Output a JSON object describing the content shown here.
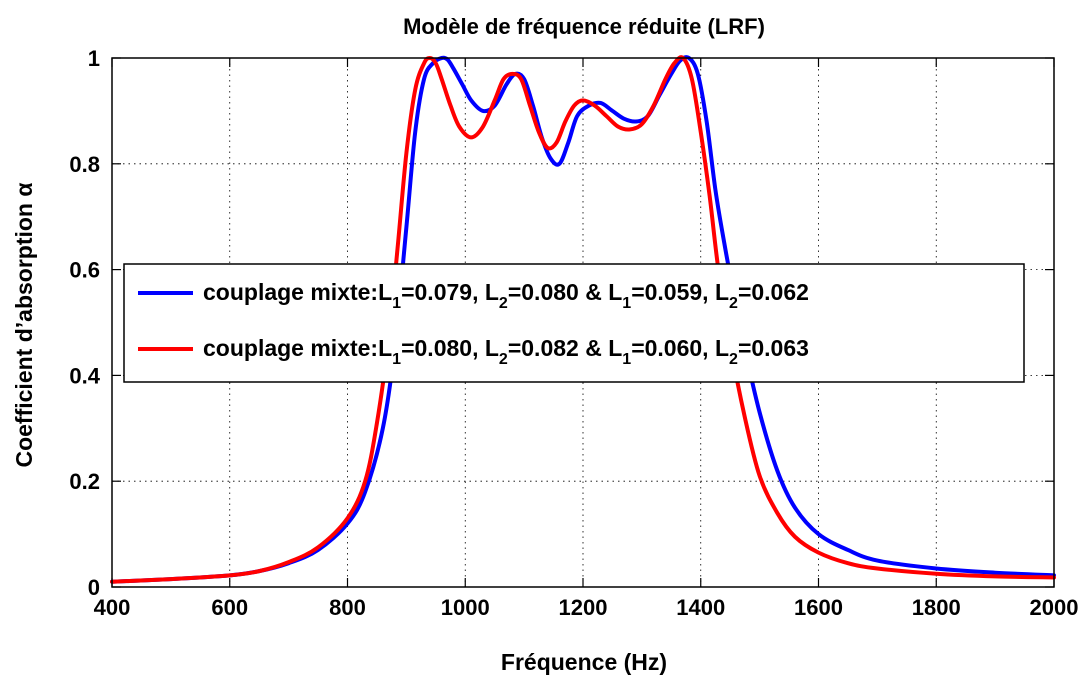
{
  "chart_data": {
    "type": "line",
    "title": "Modèle de fréquence réduite (LRF)",
    "xlabel": "Fréquence (Hz)",
    "ylabel": "Coefficient d’absorption α",
    "xlim": [
      400,
      2000
    ],
    "ylim": [
      0,
      1
    ],
    "xticks": [
      400,
      600,
      800,
      1000,
      1200,
      1400,
      1600,
      1800,
      2000
    ],
    "yticks": [
      0,
      0.2,
      0.4,
      0.6,
      0.8,
      1
    ],
    "ytick_labels": [
      "0",
      "0.2",
      "0.4",
      "0.6",
      "0.8",
      "1"
    ],
    "grid": true,
    "legend": "center",
    "series": [
      {
        "color": "#0000ff",
        "legend": {
          "prefix": "couplage mixte:",
          "parts": [
            {
              "base": "L",
              "sub": "1",
              "val": "=0.079, "
            },
            {
              "base": "L",
              "sub": "2",
              "val": "=0.080 & "
            },
            {
              "base": "L",
              "sub": "1",
              "val": "=0.059, "
            },
            {
              "base": "L",
              "sub": "2",
              "val": "=0.062"
            }
          ]
        },
        "x": [
          400,
          500,
          600,
          650,
          700,
          750,
          800,
          830,
          860,
          880,
          900,
          915,
          930,
          945,
          960,
          970,
          980,
          995,
          1010,
          1030,
          1050,
          1070,
          1085,
          1100,
          1115,
          1130,
          1145,
          1160,
          1175,
          1190,
          1210,
          1230,
          1250,
          1270,
          1290,
          1310,
          1330,
          1350,
          1365,
          1380,
          1395,
          1410,
          1425,
          1440,
          1455,
          1475,
          1500,
          1530,
          1560,
          1600,
          1650,
          1700,
          1800,
          1900,
          2000
        ],
        "y": [
          0.01,
          0.015,
          0.022,
          0.03,
          0.045,
          0.07,
          0.12,
          0.18,
          0.3,
          0.45,
          0.68,
          0.86,
          0.96,
          0.99,
          1.0,
          0.997,
          0.98,
          0.95,
          0.92,
          0.9,
          0.91,
          0.95,
          0.97,
          0.96,
          0.91,
          0.85,
          0.81,
          0.8,
          0.84,
          0.89,
          0.91,
          0.915,
          0.9,
          0.885,
          0.88,
          0.89,
          0.93,
          0.97,
          0.995,
          1.0,
          0.97,
          0.88,
          0.75,
          0.65,
          0.56,
          0.45,
          0.33,
          0.22,
          0.15,
          0.1,
          0.07,
          0.05,
          0.035,
          0.027,
          0.022
        ]
      },
      {
        "color": "#ff0000",
        "legend": {
          "prefix": "couplage mixte:",
          "parts": [
            {
              "base": "L",
              "sub": "1",
              "val": "=0.080, "
            },
            {
              "base": "L",
              "sub": "2",
              "val": "=0.082 & "
            },
            {
              "base": "L",
              "sub": "1",
              "val": "=0.060, "
            },
            {
              "base": "L",
              "sub": "2",
              "val": "=0.063"
            }
          ]
        },
        "x": [
          400,
          500,
          600,
          650,
          700,
          750,
          800,
          830,
          850,
          870,
          885,
          900,
          915,
          930,
          940,
          950,
          960,
          975,
          990,
          1010,
          1030,
          1050,
          1065,
          1080,
          1095,
          1110,
          1125,
          1140,
          1155,
          1170,
          1185,
          1200,
          1220,
          1240,
          1260,
          1280,
          1300,
          1320,
          1340,
          1355,
          1370,
          1385,
          1400,
          1415,
          1430,
          1450,
          1475,
          1500,
          1530,
          1560,
          1600,
          1650,
          1700,
          1800,
          1900,
          2000
        ],
        "y": [
          0.01,
          0.015,
          0.022,
          0.03,
          0.047,
          0.075,
          0.13,
          0.2,
          0.31,
          0.47,
          0.64,
          0.82,
          0.94,
          0.99,
          1.0,
          0.99,
          0.96,
          0.91,
          0.87,
          0.85,
          0.87,
          0.92,
          0.96,
          0.97,
          0.96,
          0.91,
          0.86,
          0.83,
          0.84,
          0.88,
          0.91,
          0.92,
          0.91,
          0.89,
          0.87,
          0.865,
          0.875,
          0.91,
          0.96,
          0.99,
          1.0,
          0.96,
          0.86,
          0.74,
          0.6,
          0.46,
          0.32,
          0.21,
          0.14,
          0.095,
          0.065,
          0.045,
          0.035,
          0.025,
          0.02,
          0.018
        ]
      }
    ]
  }
}
